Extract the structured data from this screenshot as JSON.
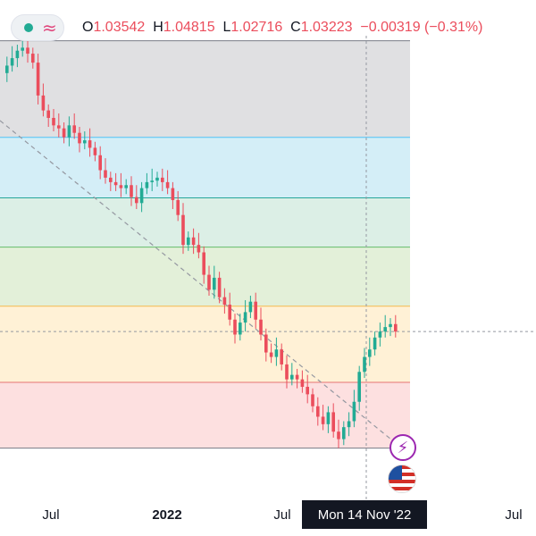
{
  "ohlc": {
    "open_label": "O",
    "open": "1.03542",
    "high_label": "H",
    "high": "1.04815",
    "low_label": "L",
    "low": "1.02716",
    "close_label": "C",
    "close": "1.03223",
    "change": "−0.00319 (−0.31%)"
  },
  "xaxis": {
    "labels": [
      "Jul",
      "2022",
      "Jul",
      "Jul"
    ],
    "crosshair_date": "Mon 14 Nov '22"
  },
  "icons": {
    "legend_dot": "status-dot-icon",
    "legend_wave": "wave-icon",
    "event": "lightning-icon",
    "country": "us-flag-icon"
  },
  "colors": {
    "up": "#22ab94",
    "down": "#eb4d5c",
    "fib_zone_1": "#e0e0e2",
    "fib_zone_2": "#d4eef7",
    "fib_zone_3": "#dcefe6",
    "fib_zone_4": "#e3f0d9",
    "fib_zone_5": "#fff1d6",
    "fib_zone_6": "#fde0e0"
  },
  "chart_data": {
    "type": "line",
    "series": [
      {
        "values": [
          1.205,
          1.21,
          1.215,
          1.22,
          1.222,
          1.218,
          1.212,
          1.19,
          1.18,
          1.175,
          1.17,
          1.168,
          1.162,
          1.17,
          1.165,
          1.158,
          1.16,
          1.155,
          1.15,
          1.14,
          1.135,
          1.132,
          1.13,
          1.128,
          1.13,
          1.122,
          1.118,
          1.128,
          1.132,
          1.133,
          1.135,
          1.132,
          1.128,
          1.12,
          1.11,
          1.09,
          1.095,
          1.09,
          1.085,
          1.07,
          1.06,
          1.068,
          1.055,
          1.05,
          1.04,
          1.03,
          1.038,
          1.045,
          1.052,
          1.04,
          1.03,
          1.018,
          1.015,
          1.02,
          1.01,
          1.0,
          1.003,
          1.0,
          0.995,
          0.99,
          0.982,
          0.975,
          0.97,
          0.978,
          0.965,
          0.96,
          0.968,
          0.972,
          0.985,
          1.005,
          1.015,
          1.02,
          1.028,
          1.032,
          1.035,
          1.037,
          1.032
        ]
      }
    ],
    "ylim": [
      0.94,
      1.23
    ],
    "fib_levels": [
      1.2266,
      1.162,
      1.1215,
      1.0885,
      1.049,
      0.998,
      0.954
    ]
  }
}
